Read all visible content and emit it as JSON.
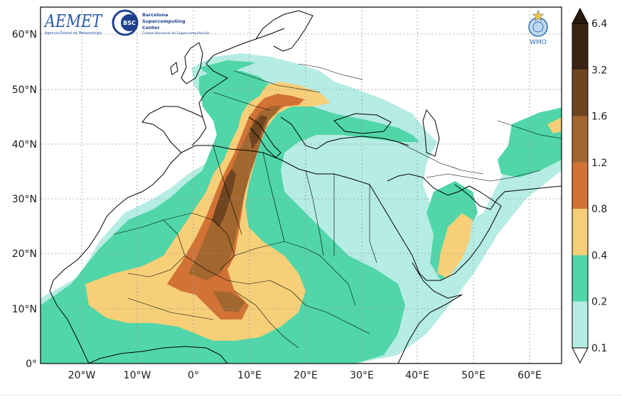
{
  "map": {
    "lat_ticks": [
      "60°N",
      "50°N",
      "40°N",
      "30°N",
      "20°N",
      "10°N",
      "0°"
    ],
    "lon_ticks": [
      "20°W",
      "10°W",
      "0°",
      "10°E",
      "20°E",
      "30°E",
      "40°E",
      "50°E",
      "60°E"
    ],
    "extent": {
      "lon_min": -27,
      "lon_max": 66,
      "lat_min": 0,
      "lat_max": 65
    }
  },
  "colorbar": {
    "labels": [
      "6.4",
      "3.2",
      "1.6",
      "1.2",
      "0.8",
      "0.4",
      "0.2",
      "0.1"
    ],
    "colors": [
      "#3b2314",
      "#6f4420",
      "#a2662f",
      "#d27235",
      "#f6cf78",
      "#50d6a8",
      "#b5ece4"
    ],
    "arrow_top_color": "#2a1a10",
    "arrow_bottom_color": "#ffffff"
  },
  "logos": {
    "aemet_text": "AEMET",
    "aemet_sub": "Agencia Estatal de Meteorología",
    "bsc_badge": "BSC",
    "bsc_lines": [
      "Barcelona",
      "Supercomputing",
      "Center"
    ],
    "bsc_sub": "Centro Nacional de Supercomputación",
    "wmo_text": "WMO"
  }
}
